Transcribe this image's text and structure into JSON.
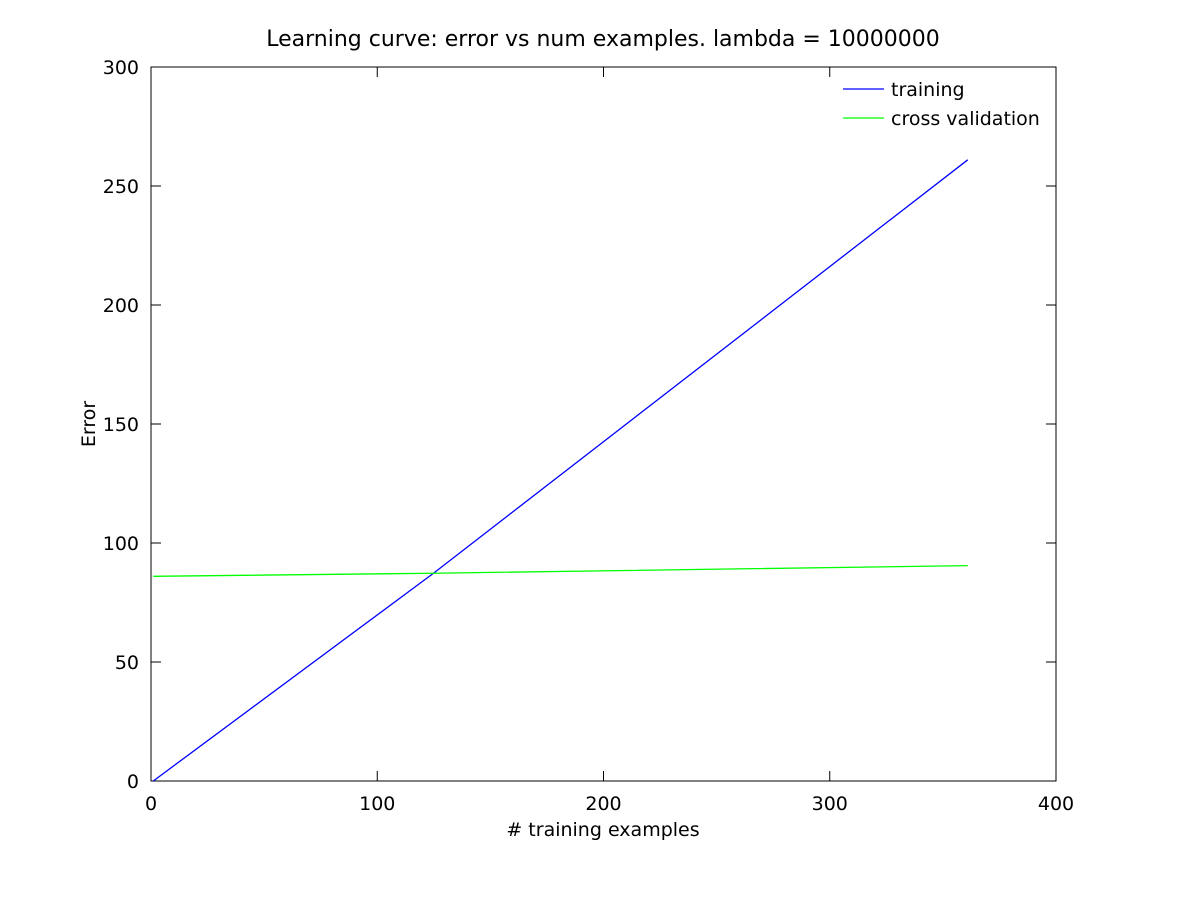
{
  "chart_data": {
    "type": "line",
    "title": "Learning curve: error vs num examples. lambda = 10000000",
    "xlabel": "# training examples",
    "ylabel": "Error",
    "xlim": [
      0,
      400
    ],
    "ylim": [
      0,
      300
    ],
    "xticks": [
      0,
      100,
      200,
      300,
      400
    ],
    "yticks": [
      0,
      50,
      100,
      150,
      200,
      250,
      300
    ],
    "grid": false,
    "legend_position": "top-right",
    "colors": {
      "axes": "#000000",
      "background": "#ffffff"
    },
    "series": [
      {
        "name": "training",
        "color": "#0000ff",
        "x": [
          1,
          125,
          361
        ],
        "y": [
          0,
          87.4,
          261
        ]
      },
      {
        "name": "cross validation",
        "color": "#00ff00",
        "x": [
          1,
          125,
          361
        ],
        "y": [
          86,
          87.3,
          90.5
        ]
      }
    ]
  }
}
